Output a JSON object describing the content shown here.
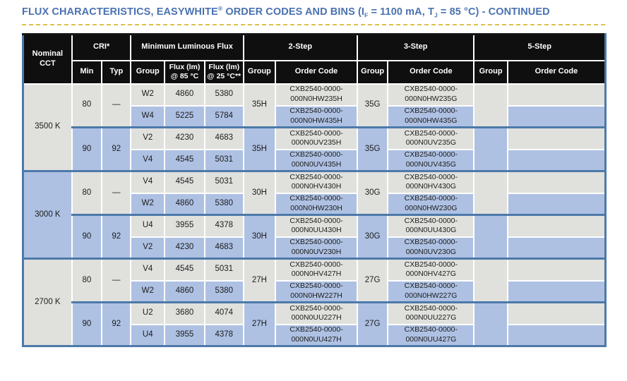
{
  "colors": {
    "title_blue": "#4a72b0",
    "underline_gold": "#dfc14d",
    "header_bg": "#0f0f0f",
    "cell_gray": "#e0e0dd",
    "cell_blue": "#aec1e3",
    "border_blue": "#4d79a9"
  },
  "title": {
    "t1": "FLUX CHARACTERISTICS, EASYWHITE",
    "reg": "®",
    "t2": " ORDER CODES AND BINS (I",
    "sub_f": "F",
    "t3": " = 1100 mA, T",
    "sub_j": "J",
    "t4": " = 85 °C) - CONTINUED"
  },
  "header": {
    "nominal_cct": "Nominal CCT",
    "cri": "CRI*",
    "min": "Min",
    "typ": "Typ",
    "min_flux": "Minimum Luminous Flux",
    "group": "Group",
    "flux85": "Flux (lm) @ 85 °C",
    "flux25": "Flux (lm) @ 25 °C**",
    "step2": "2-Step",
    "step3": "3-Step",
    "step5": "5-Step",
    "order_code": "Order Code"
  },
  "sections": [
    {
      "cct": "3500 K",
      "groups": [
        {
          "min": "80",
          "typ": "—",
          "g2": "35H",
          "g3": "35G",
          "g5": "",
          "rows": [
            {
              "bin": "W2",
              "f85": "4860",
              "f25": "5380",
              "c2": "CXB2540-0000-000N0HW235H",
              "c3": "CXB2540-0000-000N0HW235G",
              "c5": ""
            },
            {
              "bin": "W4",
              "f85": "5225",
              "f25": "5784",
              "c2": "CXB2540-0000-000N0HW435H",
              "c3": "CXB2540-0000-000N0HW435G",
              "c5": ""
            }
          ]
        },
        {
          "min": "90",
          "typ": "92",
          "g2": "35H",
          "g3": "35G",
          "g5": "",
          "rows": [
            {
              "bin": "V2",
              "f85": "4230",
              "f25": "4683",
              "c2": "CXB2540-0000-000N0UV235H",
              "c3": "CXB2540-0000-000N0UV235G",
              "c5": ""
            },
            {
              "bin": "V4",
              "f85": "4545",
              "f25": "5031",
              "c2": "CXB2540-0000-000N0UV435H",
              "c3": "CXB2540-0000-000N0UV435G",
              "c5": ""
            }
          ]
        }
      ]
    },
    {
      "cct": "3000 K",
      "groups": [
        {
          "min": "80",
          "typ": "—",
          "g2": "30H",
          "g3": "30G",
          "g5": "",
          "rows": [
            {
              "bin": "V4",
              "f85": "4545",
              "f25": "5031",
              "c2": "CXB2540-0000-000N0HV430H",
              "c3": "CXB2540-0000-000N0HV430G",
              "c5": ""
            },
            {
              "bin": "W2",
              "f85": "4860",
              "f25": "5380",
              "c2": "CXB2540-0000-000N0HW230H",
              "c3": "CXB2540-0000-000N0HW230G",
              "c5": ""
            }
          ]
        },
        {
          "min": "90",
          "typ": "92",
          "g2": "30H",
          "g3": "30G",
          "g5": "",
          "rows": [
            {
              "bin": "U4",
              "f85": "3955",
              "f25": "4378",
              "c2": "CXB2540-0000-000N0UU430H",
              "c3": "CXB2540-0000-000N0UU430G",
              "c5": ""
            },
            {
              "bin": "V2",
              "f85": "4230",
              "f25": "4683",
              "c2": "CXB2540-0000-000N0UV230H",
              "c3": "CXB2540-0000-000N0UV230G",
              "c5": ""
            }
          ]
        }
      ]
    },
    {
      "cct": "2700 K",
      "groups": [
        {
          "min": "80",
          "typ": "—",
          "g2": "27H",
          "g3": "27G",
          "g5": "",
          "rows": [
            {
              "bin": "V4",
              "f85": "4545",
              "f25": "5031",
              "c2": "CXB2540-0000-000N0HV427H",
              "c3": "CXB2540-0000-000N0HV427G",
              "c5": ""
            },
            {
              "bin": "W2",
              "f85": "4860",
              "f25": "5380",
              "c2": "CXB2540-0000-000N0HW227H",
              "c3": "CXB2540-0000-000N0HW227G",
              "c5": ""
            }
          ]
        },
        {
          "min": "90",
          "typ": "92",
          "g2": "27H",
          "g3": "27G",
          "g5": "",
          "rows": [
            {
              "bin": "U2",
              "f85": "3680",
              "f25": "4074",
              "c2": "CXB2540-0000-000N0UU227H",
              "c3": "CXB2540-0000-000N0UU227G",
              "c5": ""
            },
            {
              "bin": "U4",
              "f85": "3955",
              "f25": "4378",
              "c2": "CXB2540-0000-000N0UU427H",
              "c3": "CXB2540-0000-000N0UU427G",
              "c5": ""
            }
          ]
        }
      ]
    }
  ]
}
